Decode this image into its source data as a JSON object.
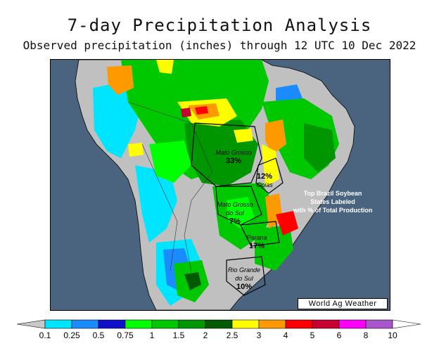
{
  "title": "7-day Precipitation Analysis",
  "subtitle": "Observed precipitation (inches) through 12 UTC 10 Dec 2022",
  "states": [
    {
      "name": "Mato Grosso",
      "pct": "33%"
    },
    {
      "name": "Goias",
      "pct": "12%"
    },
    {
      "name": "Mato Grosso do Sul",
      "pct": "7%"
    },
    {
      "name": "Parana",
      "pct": "17%"
    },
    {
      "name": "Rio Grande do Sul",
      "pct": "10%"
    }
  ],
  "note": [
    "Top Brazil Soybean",
    "States Labeled",
    "with % of Total Production"
  ],
  "credit": "World Ag Weather",
  "colorbar": {
    "labels": [
      "0.1",
      "0.25",
      "0.5",
      "0.75",
      "1",
      "1.5",
      "2",
      "2.5",
      "3",
      "4",
      "5",
      "6",
      "8",
      "10"
    ],
    "colors": [
      "#00e5ff",
      "#1a8cff",
      "#1010cc",
      "#00ff00",
      "#00c800",
      "#009600",
      "#005a00",
      "#ffff00",
      "#ff9900",
      "#ff0000",
      "#c80032",
      "#ff00ff",
      "#aa55cc"
    ],
    "ocean_color": "#4a6480",
    "land_color": "#c0c0c0"
  }
}
